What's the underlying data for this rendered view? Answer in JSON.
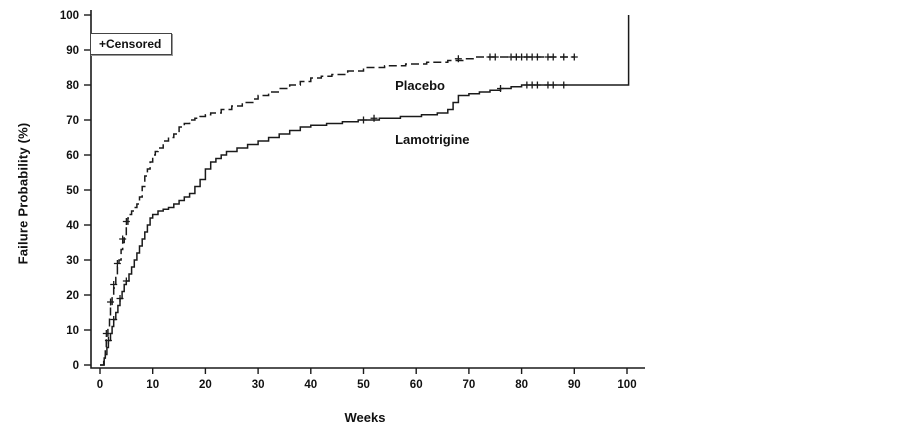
{
  "chart_data": {
    "type": "line",
    "subtype": "kaplan-meier-step",
    "title": "",
    "xlabel": "Weeks",
    "ylabel": "Failure Probability (%)",
    "xlim": [
      0,
      100
    ],
    "ylim": [
      0,
      100
    ],
    "xticks": [
      0,
      10,
      20,
      30,
      40,
      50,
      60,
      70,
      80,
      90,
      100
    ],
    "yticks": [
      0,
      10,
      20,
      30,
      40,
      50,
      60,
      70,
      80,
      90,
      100
    ],
    "grid": false,
    "legend": {
      "censored_label": "+Censored",
      "position": "top-left-inside"
    },
    "line_color": "#1a1a1a",
    "series": [
      {
        "name": "Placebo",
        "style": "dashed",
        "label_pos": {
          "x": 56,
          "y": 82
        },
        "points": [
          [
            0,
            0
          ],
          [
            0.7,
            2
          ],
          [
            1,
            5
          ],
          [
            1.2,
            8
          ],
          [
            1.5,
            11
          ],
          [
            1.8,
            14
          ],
          [
            2,
            17
          ],
          [
            2.3,
            20
          ],
          [
            2.6,
            22
          ],
          [
            3,
            25
          ],
          [
            3.3,
            28
          ],
          [
            3.6,
            30
          ],
          [
            4,
            33
          ],
          [
            4.3,
            35
          ],
          [
            4.6,
            37
          ],
          [
            5,
            40
          ],
          [
            5.3,
            42
          ],
          [
            5.6,
            43
          ],
          [
            6,
            44
          ],
          [
            6.5,
            45
          ],
          [
            7,
            46
          ],
          [
            7.5,
            48
          ],
          [
            8,
            51
          ],
          [
            8.5,
            54
          ],
          [
            9,
            56
          ],
          [
            9.5,
            58
          ],
          [
            10,
            60
          ],
          [
            10.5,
            61
          ],
          [
            11,
            62
          ],
          [
            12,
            64
          ],
          [
            13,
            65
          ],
          [
            14,
            66
          ],
          [
            15,
            68
          ],
          [
            16,
            69
          ],
          [
            17,
            70
          ],
          [
            18,
            70.5
          ],
          [
            19,
            71
          ],
          [
            20,
            71.5
          ],
          [
            21,
            72
          ],
          [
            23,
            73
          ],
          [
            25,
            74
          ],
          [
            27,
            75
          ],
          [
            29,
            76
          ],
          [
            30,
            77
          ],
          [
            32,
            78
          ],
          [
            34,
            79
          ],
          [
            36,
            80
          ],
          [
            38,
            81
          ],
          [
            40,
            82
          ],
          [
            42,
            82.5
          ],
          [
            44,
            83
          ],
          [
            47,
            84
          ],
          [
            50,
            85
          ],
          [
            54,
            85.5
          ],
          [
            58,
            86
          ],
          [
            62,
            86.5
          ],
          [
            66,
            87
          ],
          [
            69,
            87.5
          ],
          [
            71,
            88
          ],
          [
            90,
            88
          ]
        ],
        "censor_marks": [
          [
            1.2,
            9
          ],
          [
            2,
            18
          ],
          [
            2.6,
            23
          ],
          [
            3.3,
            29
          ],
          [
            4.3,
            36
          ],
          [
            5,
            41
          ],
          [
            68,
            87.5
          ],
          [
            74,
            88
          ],
          [
            75,
            88
          ],
          [
            78,
            88
          ],
          [
            79,
            88
          ],
          [
            80,
            88
          ],
          [
            81,
            88
          ],
          [
            82,
            88
          ],
          [
            83,
            88
          ],
          [
            85,
            88
          ],
          [
            86,
            88
          ],
          [
            88,
            88
          ],
          [
            90,
            88
          ]
        ]
      },
      {
        "name": "Lamotrigine",
        "style": "solid",
        "label_pos": {
          "x": 56,
          "y": 66.5
        },
        "points": [
          [
            0,
            0
          ],
          [
            0.8,
            2
          ],
          [
            1,
            3
          ],
          [
            1.3,
            5
          ],
          [
            1.6,
            7
          ],
          [
            2,
            9
          ],
          [
            2.3,
            11
          ],
          [
            2.6,
            13
          ],
          [
            3,
            15
          ],
          [
            3.4,
            17
          ],
          [
            3.8,
            19
          ],
          [
            4.2,
            21
          ],
          [
            4.6,
            23
          ],
          [
            5,
            24
          ],
          [
            5.5,
            26
          ],
          [
            6,
            28
          ],
          [
            6.5,
            30
          ],
          [
            7,
            32
          ],
          [
            7.5,
            34
          ],
          [
            8,
            36
          ],
          [
            8.5,
            38
          ],
          [
            9,
            40
          ],
          [
            9.5,
            42
          ],
          [
            10,
            43
          ],
          [
            11,
            44
          ],
          [
            12,
            44.5
          ],
          [
            13,
            45
          ],
          [
            14,
            46
          ],
          [
            15,
            47
          ],
          [
            16,
            48
          ],
          [
            17,
            49
          ],
          [
            18,
            51
          ],
          [
            19,
            53
          ],
          [
            20,
            56
          ],
          [
            21,
            58
          ],
          [
            22,
            59
          ],
          [
            23,
            60
          ],
          [
            24,
            61
          ],
          [
            26,
            62
          ],
          [
            28,
            63
          ],
          [
            30,
            64
          ],
          [
            32,
            65
          ],
          [
            34,
            66
          ],
          [
            36,
            67
          ],
          [
            38,
            68
          ],
          [
            40,
            68.5
          ],
          [
            43,
            69
          ],
          [
            46,
            69.5
          ],
          [
            49,
            70
          ],
          [
            53,
            70.5
          ],
          [
            57,
            71
          ],
          [
            61,
            71.5
          ],
          [
            64,
            72
          ],
          [
            66,
            73
          ],
          [
            67,
            75
          ],
          [
            68,
            77
          ],
          [
            70,
            77.5
          ],
          [
            72,
            78
          ],
          [
            74,
            78.5
          ],
          [
            76,
            79
          ],
          [
            78,
            79.5
          ],
          [
            80,
            80
          ],
          [
            100,
            80
          ],
          [
            100.3,
            100
          ]
        ],
        "censor_marks": [
          [
            1.6,
            7
          ],
          [
            2.6,
            13
          ],
          [
            3.8,
            19
          ],
          [
            5,
            24
          ],
          [
            50,
            70
          ],
          [
            52,
            70.5
          ],
          [
            76,
            79
          ],
          [
            81,
            80
          ],
          [
            82,
            80
          ],
          [
            83,
            80
          ],
          [
            85,
            80
          ],
          [
            86,
            80
          ],
          [
            88,
            80
          ]
        ]
      }
    ]
  }
}
